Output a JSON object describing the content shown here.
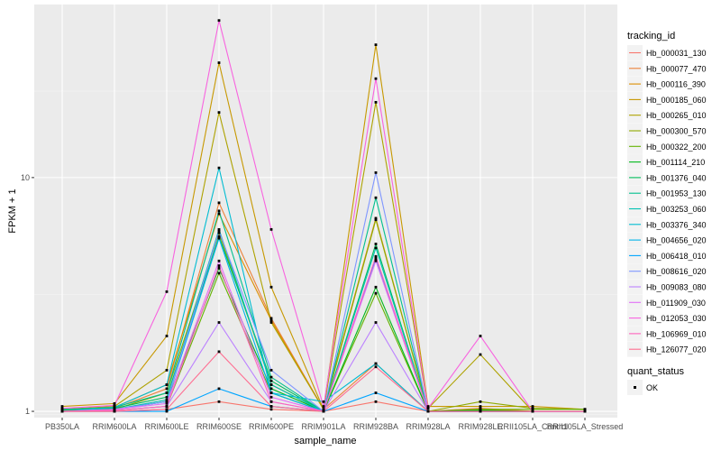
{
  "chart_data": {
    "type": "line",
    "xlabel": "sample_name",
    "ylabel": "FPKM + 1",
    "y_scale": "log10",
    "ylim": [
      0.94,
      55
    ],
    "y_ticks": [
      1,
      10
    ],
    "y_tick_labels": [
      "1",
      "10"
    ],
    "categories": [
      "PB350LA",
      "RRIM600LA",
      "RRIM600LE",
      "RRIM600SE",
      "RRIM600PE",
      "RRIM901LA",
      "RRIM928BA",
      "RRIM928LA",
      "RRIM928LE",
      "RRII105LA_Control",
      "RRII105LA_Stressed"
    ],
    "legend_title": "tracking_id",
    "legend_position": "right",
    "grid": true,
    "series": [
      {
        "name": "Hb_000031_130",
        "color": "#F8766D",
        "values": [
          1.0,
          1.0,
          1.02,
          1.1,
          1.02,
          1.0,
          1.1,
          1.0,
          1.0,
          1.0,
          1.0
        ]
      },
      {
        "name": "Hb_000077_470",
        "color": "#EC8239",
        "values": [
          1.02,
          1.03,
          1.25,
          7.8,
          2.5,
          1.02,
          1.6,
          1.0,
          1.03,
          1.0,
          1.0
        ]
      },
      {
        "name": "Hb_000116_390",
        "color": "#DB8E00",
        "values": [
          1.01,
          1.04,
          1.3,
          7.0,
          2.45,
          1.02,
          6.7,
          1.0,
          1.02,
          1.0,
          1.0
        ]
      },
      {
        "name": "Hb_000185_060",
        "color": "#C79800",
        "values": [
          1.05,
          1.08,
          2.1,
          31.0,
          3.4,
          1.02,
          37.0,
          1.05,
          1.05,
          1.05,
          1.02
        ]
      },
      {
        "name": "Hb_000265_010",
        "color": "#AEA200",
        "values": [
          1.02,
          1.05,
          1.5,
          19.0,
          2.4,
          1.02,
          21.0,
          1.03,
          1.75,
          1.0,
          1.0
        ]
      },
      {
        "name": "Hb_000300_570",
        "color": "#8FAA00",
        "values": [
          1.01,
          1.02,
          1.2,
          5.8,
          1.3,
          1.0,
          6.6,
          1.0,
          1.1,
          1.03,
          1.02
        ]
      },
      {
        "name": "Hb_000322_200",
        "color": "#64B200",
        "values": [
          1.0,
          1.01,
          1.05,
          3.9,
          1.2,
          1.0,
          3.2,
          1.0,
          1.02,
          1.02,
          1.02
        ]
      },
      {
        "name": "Hb_001114_210",
        "color": "#00B81B",
        "values": [
          1.0,
          1.02,
          1.1,
          4.1,
          1.25,
          1.0,
          3.4,
          1.0,
          1.01,
          1.0,
          1.0
        ]
      },
      {
        "name": "Hb_001376_040",
        "color": "#00BD5C",
        "values": [
          1.01,
          1.03,
          1.15,
          5.6,
          1.35,
          1.0,
          5.2,
          1.0,
          1.0,
          1.0,
          1.0
        ]
      },
      {
        "name": "Hb_001953_130",
        "color": "#00C08E",
        "values": [
          1.02,
          1.04,
          1.2,
          7.2,
          1.4,
          1.0,
          8.2,
          1.0,
          1.0,
          1.0,
          1.0
        ]
      },
      {
        "name": "Hb_003253_060",
        "color": "#00C1B2",
        "values": [
          1.0,
          1.02,
          1.12,
          6.0,
          1.3,
          1.0,
          5.0,
          1.0,
          1.0,
          1.0,
          1.0
        ]
      },
      {
        "name": "Hb_003376_340",
        "color": "#00BCD1",
        "values": [
          1.0,
          1.04,
          1.3,
          11.0,
          1.2,
          1.1,
          1.6,
          1.0,
          1.0,
          1.0,
          1.0
        ]
      },
      {
        "name": "Hb_004656_020",
        "color": "#00B3E9",
        "values": [
          1.0,
          1.02,
          1.1,
          5.5,
          1.2,
          1.0,
          4.5,
          1.0,
          1.0,
          1.0,
          1.0
        ]
      },
      {
        "name": "Hb_006418_010",
        "color": "#00A5FF",
        "values": [
          1.0,
          1.0,
          1.0,
          1.25,
          1.05,
          1.0,
          1.2,
          1.0,
          1.0,
          1.0,
          1.0
        ]
      },
      {
        "name": "Hb_008616_020",
        "color": "#7F96FF",
        "values": [
          1.0,
          1.02,
          1.1,
          5.9,
          1.5,
          1.0,
          10.5,
          1.0,
          1.0,
          1.0,
          1.0
        ]
      },
      {
        "name": "Hb_009083_080",
        "color": "#BC81FF",
        "values": [
          1.0,
          1.01,
          1.05,
          2.4,
          1.1,
          1.0,
          2.4,
          1.0,
          1.0,
          1.0,
          1.0
        ]
      },
      {
        "name": "Hb_011909_030",
        "color": "#E26EF7",
        "values": [
          1.0,
          1.02,
          1.08,
          4.4,
          1.15,
          1.0,
          4.4,
          1.0,
          1.0,
          1.0,
          1.0
        ]
      },
      {
        "name": "Hb_012053_030",
        "color": "#F863DF",
        "values": [
          1.03,
          1.06,
          3.25,
          47.0,
          6.0,
          1.05,
          26.5,
          1.03,
          2.1,
          1.0,
          1.0
        ]
      },
      {
        "name": "Hb_106969_010",
        "color": "#FF62BC",
        "values": [
          1.0,
          1.01,
          1.05,
          4.2,
          1.1,
          1.0,
          4.6,
          1.0,
          1.0,
          1.0,
          1.0
        ]
      },
      {
        "name": "Hb_126077_020",
        "color": "#FF6C90",
        "values": [
          1.0,
          1.0,
          1.02,
          1.8,
          1.05,
          1.0,
          1.55,
          1.0,
          1.0,
          1.0,
          1.0
        ]
      }
    ],
    "shape_legend": {
      "title": "quant_status",
      "entries": [
        {
          "label": "OK",
          "symbol": "square"
        }
      ]
    }
  }
}
